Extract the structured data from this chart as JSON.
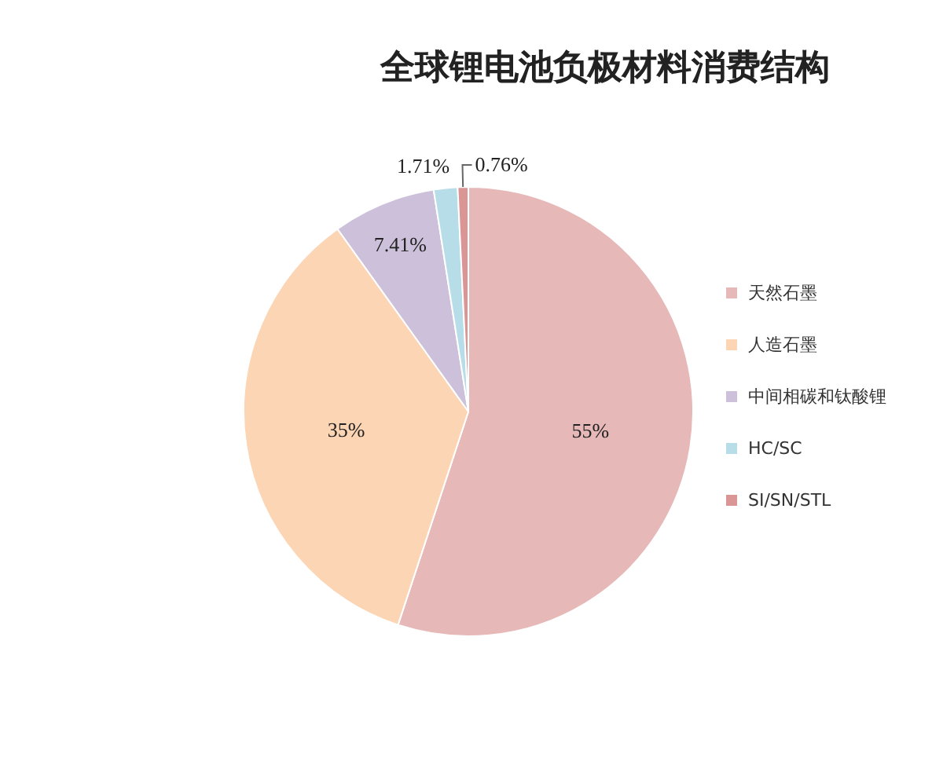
{
  "chart_data": {
    "type": "pie",
    "title": "全球锂电池负极材料消费结构",
    "categories": [
      "天然石墨",
      "人造石墨",
      "中间相碳和钛酸锂",
      "HC/SC",
      "SI/SN/STL"
    ],
    "values": [
      55,
      35,
      7.41,
      1.71,
      0.76
    ],
    "colors": [
      "#e6b8b7",
      "#fcd5b4",
      "#ccc0da",
      "#b7dee8",
      "#da9694"
    ],
    "value_labels": [
      "55%",
      "35%",
      "7.41%",
      "1.71%",
      "0.76%"
    ],
    "legend": "right"
  }
}
